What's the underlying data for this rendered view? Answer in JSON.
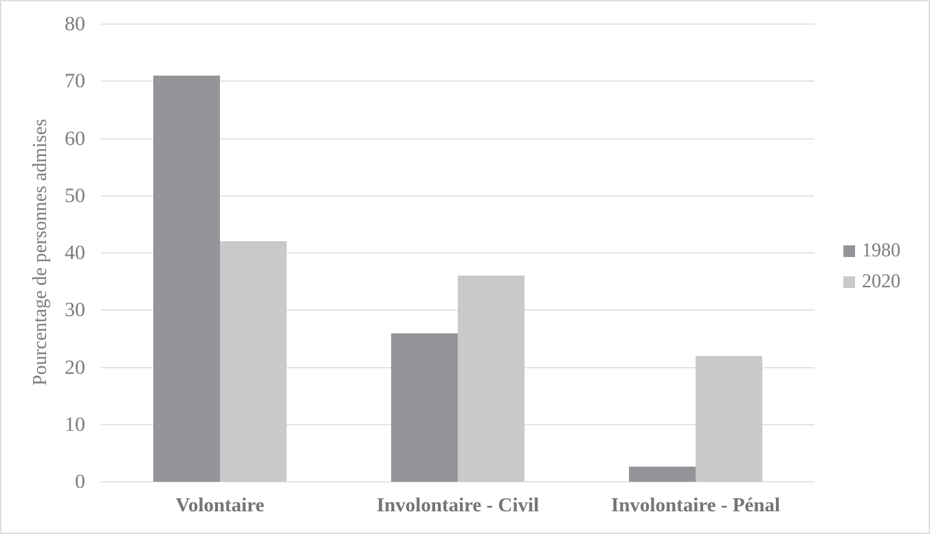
{
  "chart_data": {
    "type": "bar",
    "title": "",
    "categories": [
      "Volontaire",
      "Involontaire - Civil",
      "Involontaire - Pénal"
    ],
    "series": [
      {
        "name": "1980",
        "color": "#939598",
        "values": [
          71,
          26,
          2.7
        ]
      },
      {
        "name": "2020",
        "color": "#c8c9ca",
        "values": [
          42,
          36,
          22
        ]
      }
    ],
    "xlabel": "",
    "ylabel": "Pourcentage de personnes admises",
    "ylim": [
      0,
      80
    ],
    "yticks": [
      0,
      10,
      20,
      30,
      40,
      50,
      60,
      70,
      80
    ],
    "grid": true,
    "legend_position": "right",
    "gridline_color": "#e3e4e6",
    "page_border_color": "#dcdee0"
  }
}
